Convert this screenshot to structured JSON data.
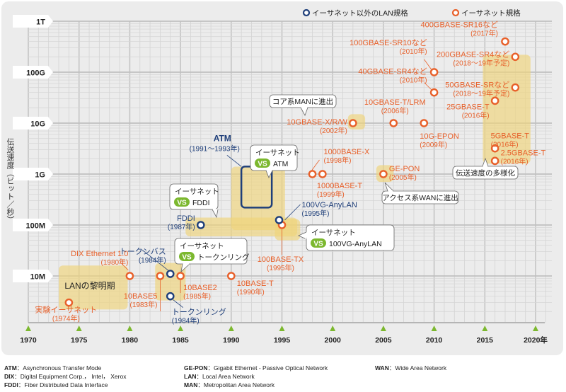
{
  "chart_data": {
    "type": "scatter",
    "title": "",
    "ylabel": "伝送速度（ビット／秒）",
    "xlabel": "",
    "x_scale": "linear",
    "y_scale": "log",
    "xlim": [
      1970,
      2020
    ],
    "ylim_bps": [
      10000000.0,
      1000000000000.0
    ],
    "x_ticks": [
      {
        "value": 1970,
        "label": "1970"
      },
      {
        "value": 1975,
        "label": "1975"
      },
      {
        "value": 1980,
        "label": "1980"
      },
      {
        "value": 1985,
        "label": "1985"
      },
      {
        "value": 1990,
        "label": "1990"
      },
      {
        "value": 1995,
        "label": "1995"
      },
      {
        "value": 2000,
        "label": "2000"
      },
      {
        "value": 2005,
        "label": "2005"
      },
      {
        "value": 2010,
        "label": "2010"
      },
      {
        "value": 2015,
        "label": "2015"
      },
      {
        "value": 2020,
        "label": "2020年"
      }
    ],
    "y_ticks": [
      {
        "value": 1000000000000.0,
        "label": "1T"
      },
      {
        "value": 100000000000.0,
        "label": "100G"
      },
      {
        "value": 10000000000.0,
        "label": "10G"
      },
      {
        "value": 1000000000.0,
        "label": "1G"
      },
      {
        "value": 100000000.0,
        "label": "100M"
      },
      {
        "value": 10000000.0,
        "label": "10M"
      }
    ],
    "grid": true,
    "legend_position": "top-right",
    "legend": [
      {
        "name": "イーサネット以外のLAN規格",
        "color": "#1f3f7a"
      },
      {
        "name": "イーサネット規格",
        "color": "#e8602a"
      }
    ],
    "series": [
      {
        "name": "イーサネット規格",
        "color": "#e8602a",
        "points": [
          {
            "label": "実験イーサネット",
            "year_label": "(1974年)",
            "x": 1974,
            "y": 3000000.0
          },
          {
            "label": "DIX Ethernet 1.0",
            "year_label": "(1980年)",
            "x": 1980,
            "y": 10000000.0
          },
          {
            "label": "10BASE5",
            "year_label": "(1983年)",
            "x": 1983,
            "y": 10000000.0
          },
          {
            "label": "10BASE2",
            "year_label": "(1985年)",
            "x": 1985,
            "y": 10000000.0
          },
          {
            "label": "10BASE-T",
            "year_label": "(1990年)",
            "x": 1990,
            "y": 10000000.0
          },
          {
            "label": "100BASE-TX",
            "year_label": "(1995年)",
            "x": 1995,
            "y": 100000000.0
          },
          {
            "label": "1000BASE-X",
            "year_label": "(1998年)",
            "x": 1998,
            "y": 1000000000.0
          },
          {
            "label": "1000BASE-T",
            "year_label": "(1999年)",
            "x": 1999,
            "y": 1000000000.0
          },
          {
            "label": "10GBASE-X/R/W",
            "year_label": "(2002年)",
            "x": 2002,
            "y": 10000000000.0
          },
          {
            "label": "GE-PON",
            "year_label": "(2005年)",
            "x": 2005,
            "y": 1000000000.0
          },
          {
            "label": "10GBASE-T/LRM",
            "year_label": "(2006年)",
            "x": 2006,
            "y": 10000000000.0
          },
          {
            "label": "10G-EPON",
            "year_label": "(2009年)",
            "x": 2009,
            "y": 10000000000.0
          },
          {
            "label": "100GBASE-SR10など",
            "year_label": "(2010年)",
            "x": 2010,
            "y": 100000000000.0
          },
          {
            "label": "40GBASE-SR4など",
            "year_label": "(2010年)",
            "x": 2010,
            "y": 40000000000.0
          },
          {
            "label": "25GBASE-T",
            "year_label": "(2016年)",
            "x": 2016,
            "y": 25000000000.0
          },
          {
            "label": "5GBASE-T",
            "year_label": "(2016年)",
            "x": 2016,
            "y": 5000000000.0
          },
          {
            "label": "2.5GBASE-T",
            "year_label": "(2016年)",
            "x": 2016,
            "y": 2500000000.0
          },
          {
            "label": "400GBASE-SR16など",
            "year_label": "(2017年)",
            "x": 2017,
            "y": 400000000000.0
          },
          {
            "label": "200GBASE-SR4など",
            "year_label": "(2018～19年予定)",
            "x": 2018,
            "y": 200000000000.0
          },
          {
            "label": "50GBASE-SRなど",
            "year_label": "(2018～19年予定)",
            "x": 2018,
            "y": 50000000000.0
          }
        ]
      },
      {
        "name": "イーサネット以外のLAN規格",
        "color": "#1f3f7a",
        "points": [
          {
            "label": "トークンバス",
            "year_label": "(1984年)",
            "x": 1984,
            "y": 11000000.0
          },
          {
            "label": "トークンリング",
            "year_label": "(1984年)",
            "x": 1984,
            "y": 4000000.0
          },
          {
            "label": "FDDI",
            "year_label": "(1987年)",
            "x": 1987,
            "y": 100000000.0
          },
          {
            "label": "100VG-AnyLAN",
            "year_label": "(1995年)",
            "x": 1995,
            "y": 110000000.0
          },
          {
            "label": "ATM",
            "year_label": "(1991～1993年)",
            "x": 1992,
            "y": 600000000.0,
            "shape": "square"
          }
        ]
      }
    ],
    "annotations": [
      {
        "text": "LANの黎明期",
        "type": "region"
      },
      {
        "text": "コア系MANに進出",
        "type": "callout"
      },
      {
        "text": "アクセス系WANに進出",
        "type": "callout"
      },
      {
        "text": "伝送速度の多様化",
        "type": "callout"
      },
      {
        "title": "イーサネット",
        "vs": "VS",
        "rival": "ATM",
        "type": "vs-callout"
      },
      {
        "title": "イーサネット",
        "vs": "VS",
        "rival": "FDDI",
        "type": "vs-callout"
      },
      {
        "title": "イーサネット",
        "vs": "VS",
        "rival": "トークンリング",
        "type": "vs-callout"
      },
      {
        "title": "イーサネット",
        "vs": "VS",
        "rival": "100VG-AnyLAN",
        "type": "vs-callout"
      }
    ]
  },
  "abbreviations": [
    {
      "key": "ATM",
      "sep": "：",
      "value": "Asynchronous Transfer Mode"
    },
    {
      "key": "DIX",
      "sep": "：",
      "value": "Digital Equipment Corp.， Intel， Xerox"
    },
    {
      "key": "FDDI",
      "sep": "：",
      "value": "Fiber Distributed Data Interface"
    },
    {
      "key": "GE-PON",
      "sep": "：",
      "value": "Gigabit Ethernet - Passive Optical Network"
    },
    {
      "key": "LAN",
      "sep": "：",
      "value": "Local Area Network"
    },
    {
      "key": "MAN",
      "sep": "：",
      "value": "Metropolitan Area Network"
    },
    {
      "key": "WAN",
      "sep": "：",
      "value": "Wide Area Network"
    }
  ],
  "colors": {
    "ethernet": "#e8602a",
    "non_ethernet": "#1f3f7a",
    "highlight": "#f0d47a",
    "vs_badge": "#7cb82f",
    "axis_arrow": "#7cb82f"
  }
}
